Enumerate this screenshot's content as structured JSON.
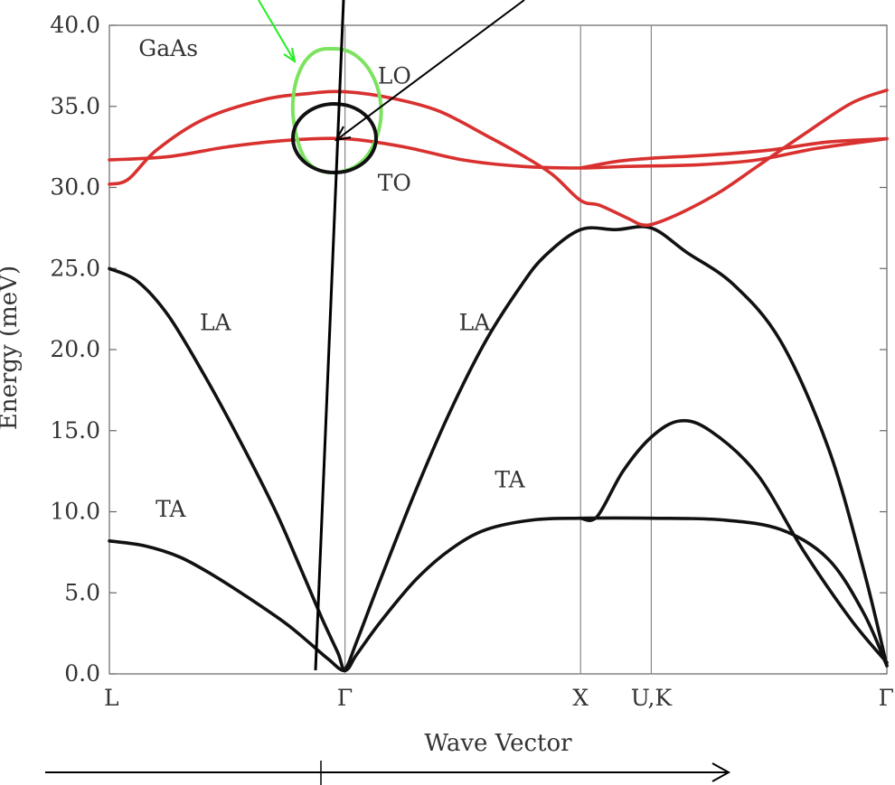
{
  "chart_data": {
    "type": "line",
    "title": "",
    "material_label": "GaAs",
    "xlabel": "Wave Vector",
    "ylabel": "Energy (meV)",
    "ylim": [
      0,
      40
    ],
    "y_ticks": [
      "0.0",
      "5.0",
      "10.0",
      "15.0",
      "20.0",
      "25.0",
      "30.0",
      "35.0",
      "40.0"
    ],
    "y_tick_values": [
      0,
      5,
      10,
      15,
      20,
      25,
      30,
      35,
      40
    ],
    "x_points": [
      {
        "label": "L",
        "pos": 0.0
      },
      {
        "label": "Γ",
        "pos": 1.0
      },
      {
        "label": "X",
        "pos": 2.0
      },
      {
        "label": "U,K",
        "pos": 2.3
      },
      {
        "label": "Γ",
        "pos": 3.3
      }
    ],
    "grid": false,
    "series": [
      {
        "name": "TA",
        "branch": "acoustic",
        "color": "#111111",
        "points": [
          [
            0,
            8.2
          ],
          [
            0.15,
            7.9
          ],
          [
            0.3,
            7.2
          ],
          [
            0.45,
            6
          ],
          [
            0.6,
            4.6
          ],
          [
            0.75,
            3.1
          ],
          [
            0.85,
            1.9
          ],
          [
            0.93,
            0.9
          ],
          [
            1,
            0.2
          ],
          [
            1.05,
            1.2
          ],
          [
            1.15,
            3.2
          ],
          [
            1.3,
            5.8
          ],
          [
            1.45,
            7.7
          ],
          [
            1.6,
            8.9
          ],
          [
            1.8,
            9.5
          ],
          [
            2,
            9.6
          ],
          [
            2.3,
            9.6
          ],
          [
            2.6,
            9.5
          ],
          [
            2.85,
            8.9
          ],
          [
            3.05,
            7.1
          ],
          [
            3.2,
            3.8
          ],
          [
            3.3,
            0.5
          ]
        ]
      },
      {
        "name": "TA2",
        "branch": "acoustic",
        "color": "#111111",
        "points": [
          [
            2,
            9.6
          ],
          [
            2.07,
            9.7
          ],
          [
            2.18,
            12.5
          ],
          [
            2.3,
            14.6
          ],
          [
            2.42,
            15.6
          ],
          [
            2.55,
            15
          ],
          [
            2.75,
            12.3
          ],
          [
            2.95,
            7.5
          ],
          [
            3.15,
            3.3
          ],
          [
            3.3,
            0.7
          ]
        ]
      },
      {
        "name": "LA",
        "branch": "acoustic",
        "color": "#111111",
        "points": [
          [
            0,
            25
          ],
          [
            0.12,
            24.2
          ],
          [
            0.25,
            22.1
          ],
          [
            0.4,
            18.5
          ],
          [
            0.55,
            14.5
          ],
          [
            0.7,
            10.2
          ],
          [
            0.8,
            6.9
          ],
          [
            0.9,
            3.5
          ],
          [
            0.97,
            1.3
          ],
          [
            1,
            0.3
          ],
          [
            1.05,
            2
          ],
          [
            1.15,
            5.8
          ],
          [
            1.3,
            11.3
          ],
          [
            1.45,
            16.3
          ],
          [
            1.6,
            20.6
          ],
          [
            1.75,
            24
          ],
          [
            1.85,
            25.8
          ],
          [
            2,
            27.4
          ],
          [
            2.15,
            27.4
          ],
          [
            2.3,
            27.5
          ],
          [
            2.45,
            26
          ],
          [
            2.65,
            24
          ],
          [
            2.85,
            20.5
          ],
          [
            3.05,
            14
          ],
          [
            3.2,
            6.5
          ],
          [
            3.3,
            0.5
          ]
        ]
      },
      {
        "name": "TO",
        "branch": "optical",
        "color": "#d8312f",
        "points": [
          [
            0,
            31.7
          ],
          [
            0.25,
            31.9
          ],
          [
            0.5,
            32.5
          ],
          [
            0.75,
            32.9
          ],
          [
            1,
            33
          ],
          [
            1.25,
            32.5
          ],
          [
            1.5,
            31.7
          ],
          [
            1.75,
            31.3
          ],
          [
            2,
            31.2
          ],
          [
            2.2,
            31.3
          ],
          [
            2.5,
            31.4
          ],
          [
            2.75,
            31.7
          ],
          [
            3,
            32.4
          ],
          [
            3.3,
            33
          ]
        ]
      },
      {
        "name": "TO2",
        "branch": "optical",
        "color": "#d8312f",
        "points": [
          [
            2,
            31.2
          ],
          [
            2.15,
            31.6
          ],
          [
            2.3,
            31.8
          ],
          [
            2.55,
            32
          ],
          [
            2.8,
            32.3
          ],
          [
            3.05,
            32.8
          ],
          [
            3.3,
            33
          ]
        ]
      },
      {
        "name": "LO",
        "branch": "optical",
        "color": "#d8312f",
        "points": [
          [
            0,
            30.2
          ],
          [
            0.08,
            30.5
          ],
          [
            0.2,
            32.3
          ],
          [
            0.4,
            34.2
          ],
          [
            0.65,
            35.4
          ],
          [
            0.85,
            35.8
          ],
          [
            1,
            35.9
          ],
          [
            1.2,
            35.5
          ],
          [
            1.4,
            34.7
          ],
          [
            1.6,
            33.2
          ],
          [
            1.75,
            32
          ],
          [
            1.88,
            30.8
          ],
          [
            2,
            29.2
          ],
          [
            2.08,
            28.9
          ],
          [
            2.2,
            28.1
          ],
          [
            2.26,
            27.7
          ],
          [
            2.32,
            27.8
          ],
          [
            2.45,
            28.6
          ],
          [
            2.6,
            29.8
          ],
          [
            2.75,
            31.3
          ],
          [
            2.95,
            33.3
          ],
          [
            3.15,
            35.2
          ],
          [
            3.3,
            36
          ]
        ]
      }
    ],
    "labels": [
      {
        "text": "GaAs",
        "x": 0.25,
        "y": 38.1,
        "color": "#333333"
      },
      {
        "text": "LO",
        "x": 1.21,
        "y": 36.4,
        "color": "#d8312f"
      },
      {
        "text": "TO",
        "x": 1.21,
        "y": 29.8,
        "color": "#d8312f"
      },
      {
        "text": "LA",
        "x": 0.45,
        "y": 21.2,
        "color": "#333333"
      },
      {
        "text": "TA",
        "x": 0.26,
        "y": 9.7,
        "color": "#333333"
      },
      {
        "text": "LA",
        "x": 1.55,
        "y": 21.2,
        "color": "#333333"
      },
      {
        "text": "TA",
        "x": 1.7,
        "y": 11.5,
        "color": "#333333"
      }
    ]
  }
}
